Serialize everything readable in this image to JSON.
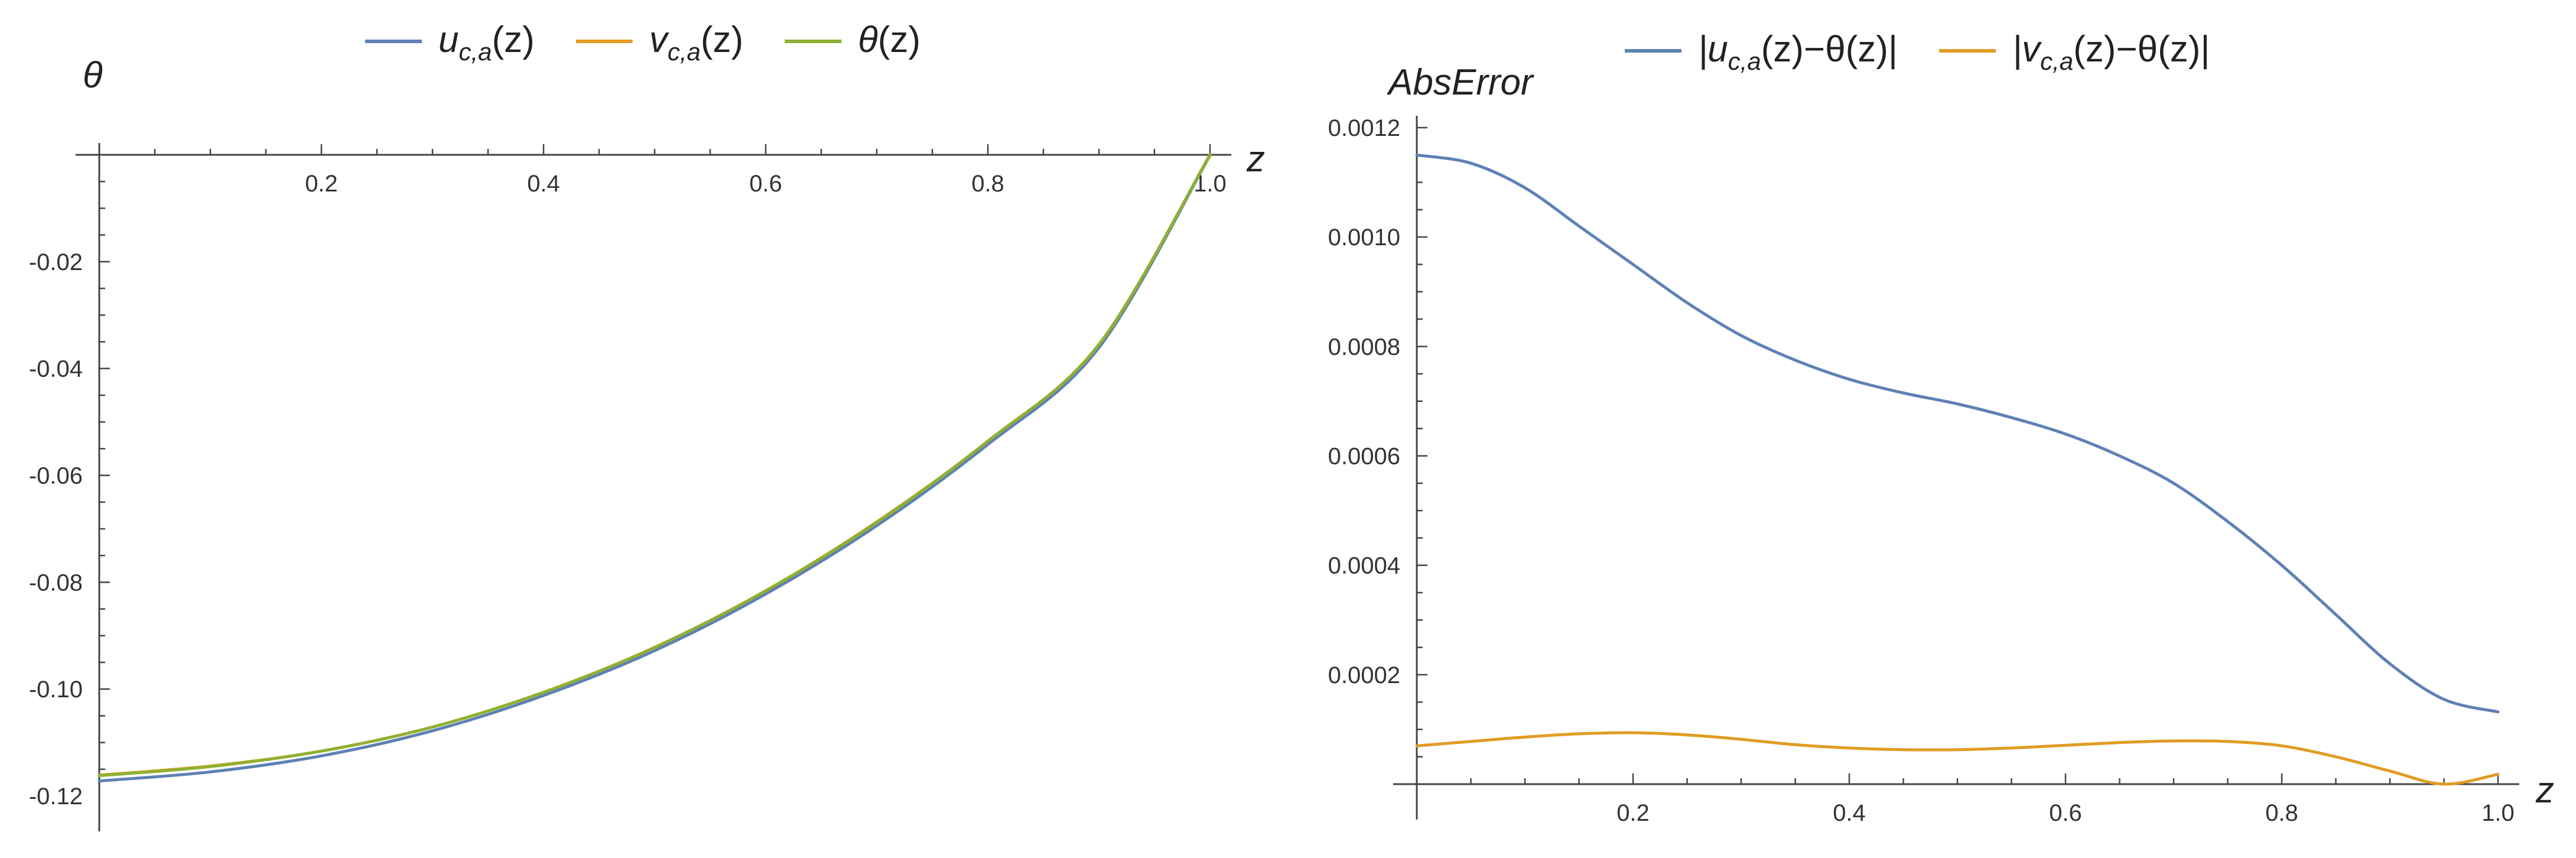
{
  "chart_data": [
    {
      "type": "line",
      "title": "",
      "xlabel": "z",
      "ylabel": "θ",
      "xlim": [
        0,
        1
      ],
      "ylim": [
        -0.12,
        0
      ],
      "x_ticks": [
        0.2,
        0.4,
        0.6,
        0.8,
        1.0
      ],
      "x_tick_labels": [
        "0.2",
        "0.4",
        "0.6",
        "0.8",
        "1.0"
      ],
      "y_ticks": [
        -0.02,
        -0.04,
        -0.06,
        -0.08,
        -0.1,
        -0.12
      ],
      "y_tick_labels": [
        "-0.02",
        "-0.04",
        "-0.06",
        "-0.08",
        "-0.10",
        "-0.12"
      ],
      "legend_position": "top",
      "grid": false,
      "x": [
        0.0,
        0.1,
        0.2,
        0.3,
        0.4,
        0.5,
        0.6,
        0.7,
        0.8,
        0.9,
        1.0
      ],
      "series": [
        {
          "name": "u_{c,a}(z)",
          "legend": {
            "base": "u",
            "sub": "c,a",
            "arg": "(z)"
          },
          "color": "#5e81b5",
          "values": [
            -0.1172,
            -0.1155,
            -0.1125,
            -0.1078,
            -0.1012,
            -0.0928,
            -0.0822,
            -0.0694,
            -0.0542,
            -0.0361,
            -0.0001
          ]
        },
        {
          "name": "v_{c,a}(z)",
          "legend": {
            "base": "v",
            "sub": "c,a",
            "arg": "(z)"
          },
          "color": "#e19c24",
          "values": [
            -0.1161,
            -0.1144,
            -0.1116,
            -0.1071,
            -0.1006,
            -0.0922,
            -0.0816,
            -0.0687,
            -0.0536,
            -0.0355,
            0.0
          ]
        },
        {
          "name": "θ(z)",
          "legend": {
            "base": "θ",
            "sub": "",
            "arg": "(z)"
          },
          "color": "#8fb032",
          "values": [
            -0.1162,
            -0.1145,
            -0.1116,
            -0.1071,
            -0.1006,
            -0.0922,
            -0.0816,
            -0.0688,
            -0.0536,
            -0.0355,
            0.0
          ]
        }
      ]
    },
    {
      "type": "line",
      "title": "",
      "xlabel": "z",
      "ylabel": "AbsError",
      "xlim": [
        0,
        1
      ],
      "ylim": [
        0,
        0.0012
      ],
      "x_ticks": [
        0.2,
        0.4,
        0.6,
        0.8,
        1.0
      ],
      "x_tick_labels": [
        "0.2",
        "0.4",
        "0.6",
        "0.8",
        "1.0"
      ],
      "y_ticks": [
        0.0002,
        0.0004,
        0.0006,
        0.0008,
        0.001,
        0.0012
      ],
      "y_tick_labels": [
        "0.0002",
        "0.0004",
        "0.0006",
        "0.0008",
        "0.0010",
        "0.0012"
      ],
      "legend_position": "top",
      "grid": false,
      "x": [
        0.0,
        0.05,
        0.1,
        0.15,
        0.2,
        0.25,
        0.3,
        0.35,
        0.4,
        0.45,
        0.5,
        0.55,
        0.6,
        0.65,
        0.7,
        0.75,
        0.8,
        0.85,
        0.9,
        0.95,
        1.0
      ],
      "series": [
        {
          "name": "|u_{c,a}(z)−θ(z)|",
          "legend": {
            "base": "|u",
            "sub": "c,a",
            "arg": "(z)−θ(z)|"
          },
          "color": "#5e81b5",
          "values": [
            0.00115,
            0.001135,
            0.00109,
            0.00102,
            0.00095,
            0.00088,
            0.00082,
            0.000775,
            0.00074,
            0.000715,
            0.000695,
            0.00067,
            0.00064,
            0.0006,
            0.00055,
            0.00048,
            0.0004,
            0.00031,
            0.00022,
            0.000155,
            0.000132
          ]
        },
        {
          "name": "|v_{c,a}(z)−θ(z)|",
          "legend": {
            "base": "|v",
            "sub": "c,a",
            "arg": "(z)−θ(z)|"
          },
          "color": "#e19c24",
          "values": [
            7e-05,
            7.8e-05,
            8.6e-05,
            9.2e-05,
            9.4e-05,
            9e-05,
            8.2e-05,
            7.2e-05,
            6.6e-05,
            6.3e-05,
            6.3e-05,
            6.6e-05,
            7.1e-05,
            7.6e-05,
            7.9e-05,
            7.8e-05,
            7e-05,
            5e-05,
            2.4e-05,
            0.0,
            1.8e-05
          ]
        }
      ]
    }
  ]
}
